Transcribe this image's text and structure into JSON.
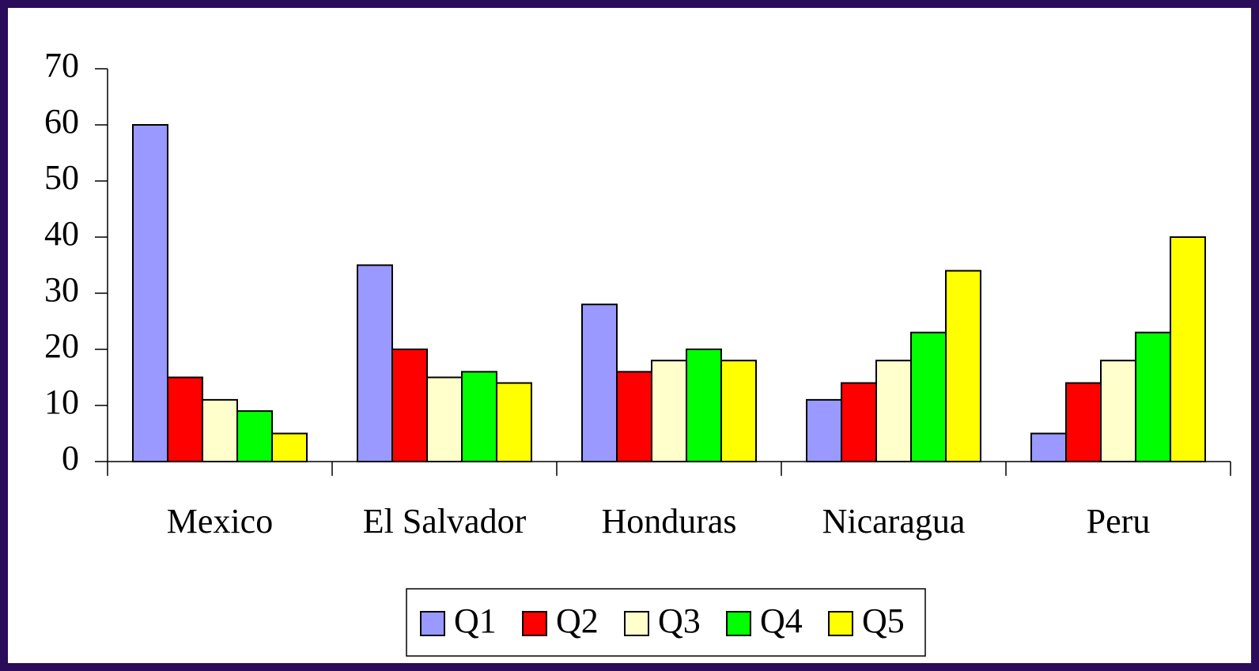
{
  "chart_data": {
    "type": "bar",
    "categories": [
      "Mexico",
      "El Salvador",
      "Honduras",
      "Nicaragua",
      "Peru"
    ],
    "series": [
      {
        "name": "Q1",
        "color": "#9999ff",
        "values": [
          60,
          35,
          28,
          11,
          5
        ]
      },
      {
        "name": "Q2",
        "color": "#ff0000",
        "values": [
          15,
          20,
          16,
          14,
          14
        ]
      },
      {
        "name": "Q3",
        "color": "#ffffcc",
        "values": [
          11,
          15,
          18,
          18,
          18
        ]
      },
      {
        "name": "Q4",
        "color": "#00ff00",
        "values": [
          9,
          16,
          20,
          23,
          23
        ]
      },
      {
        "name": "Q5",
        "color": "#ffff00",
        "values": [
          5,
          14,
          18,
          34,
          40
        ]
      }
    ],
    "ylim": [
      0,
      70
    ],
    "yticks": [
      0,
      10,
      20,
      30,
      40,
      50,
      60,
      70
    ],
    "legend": "bottom"
  }
}
